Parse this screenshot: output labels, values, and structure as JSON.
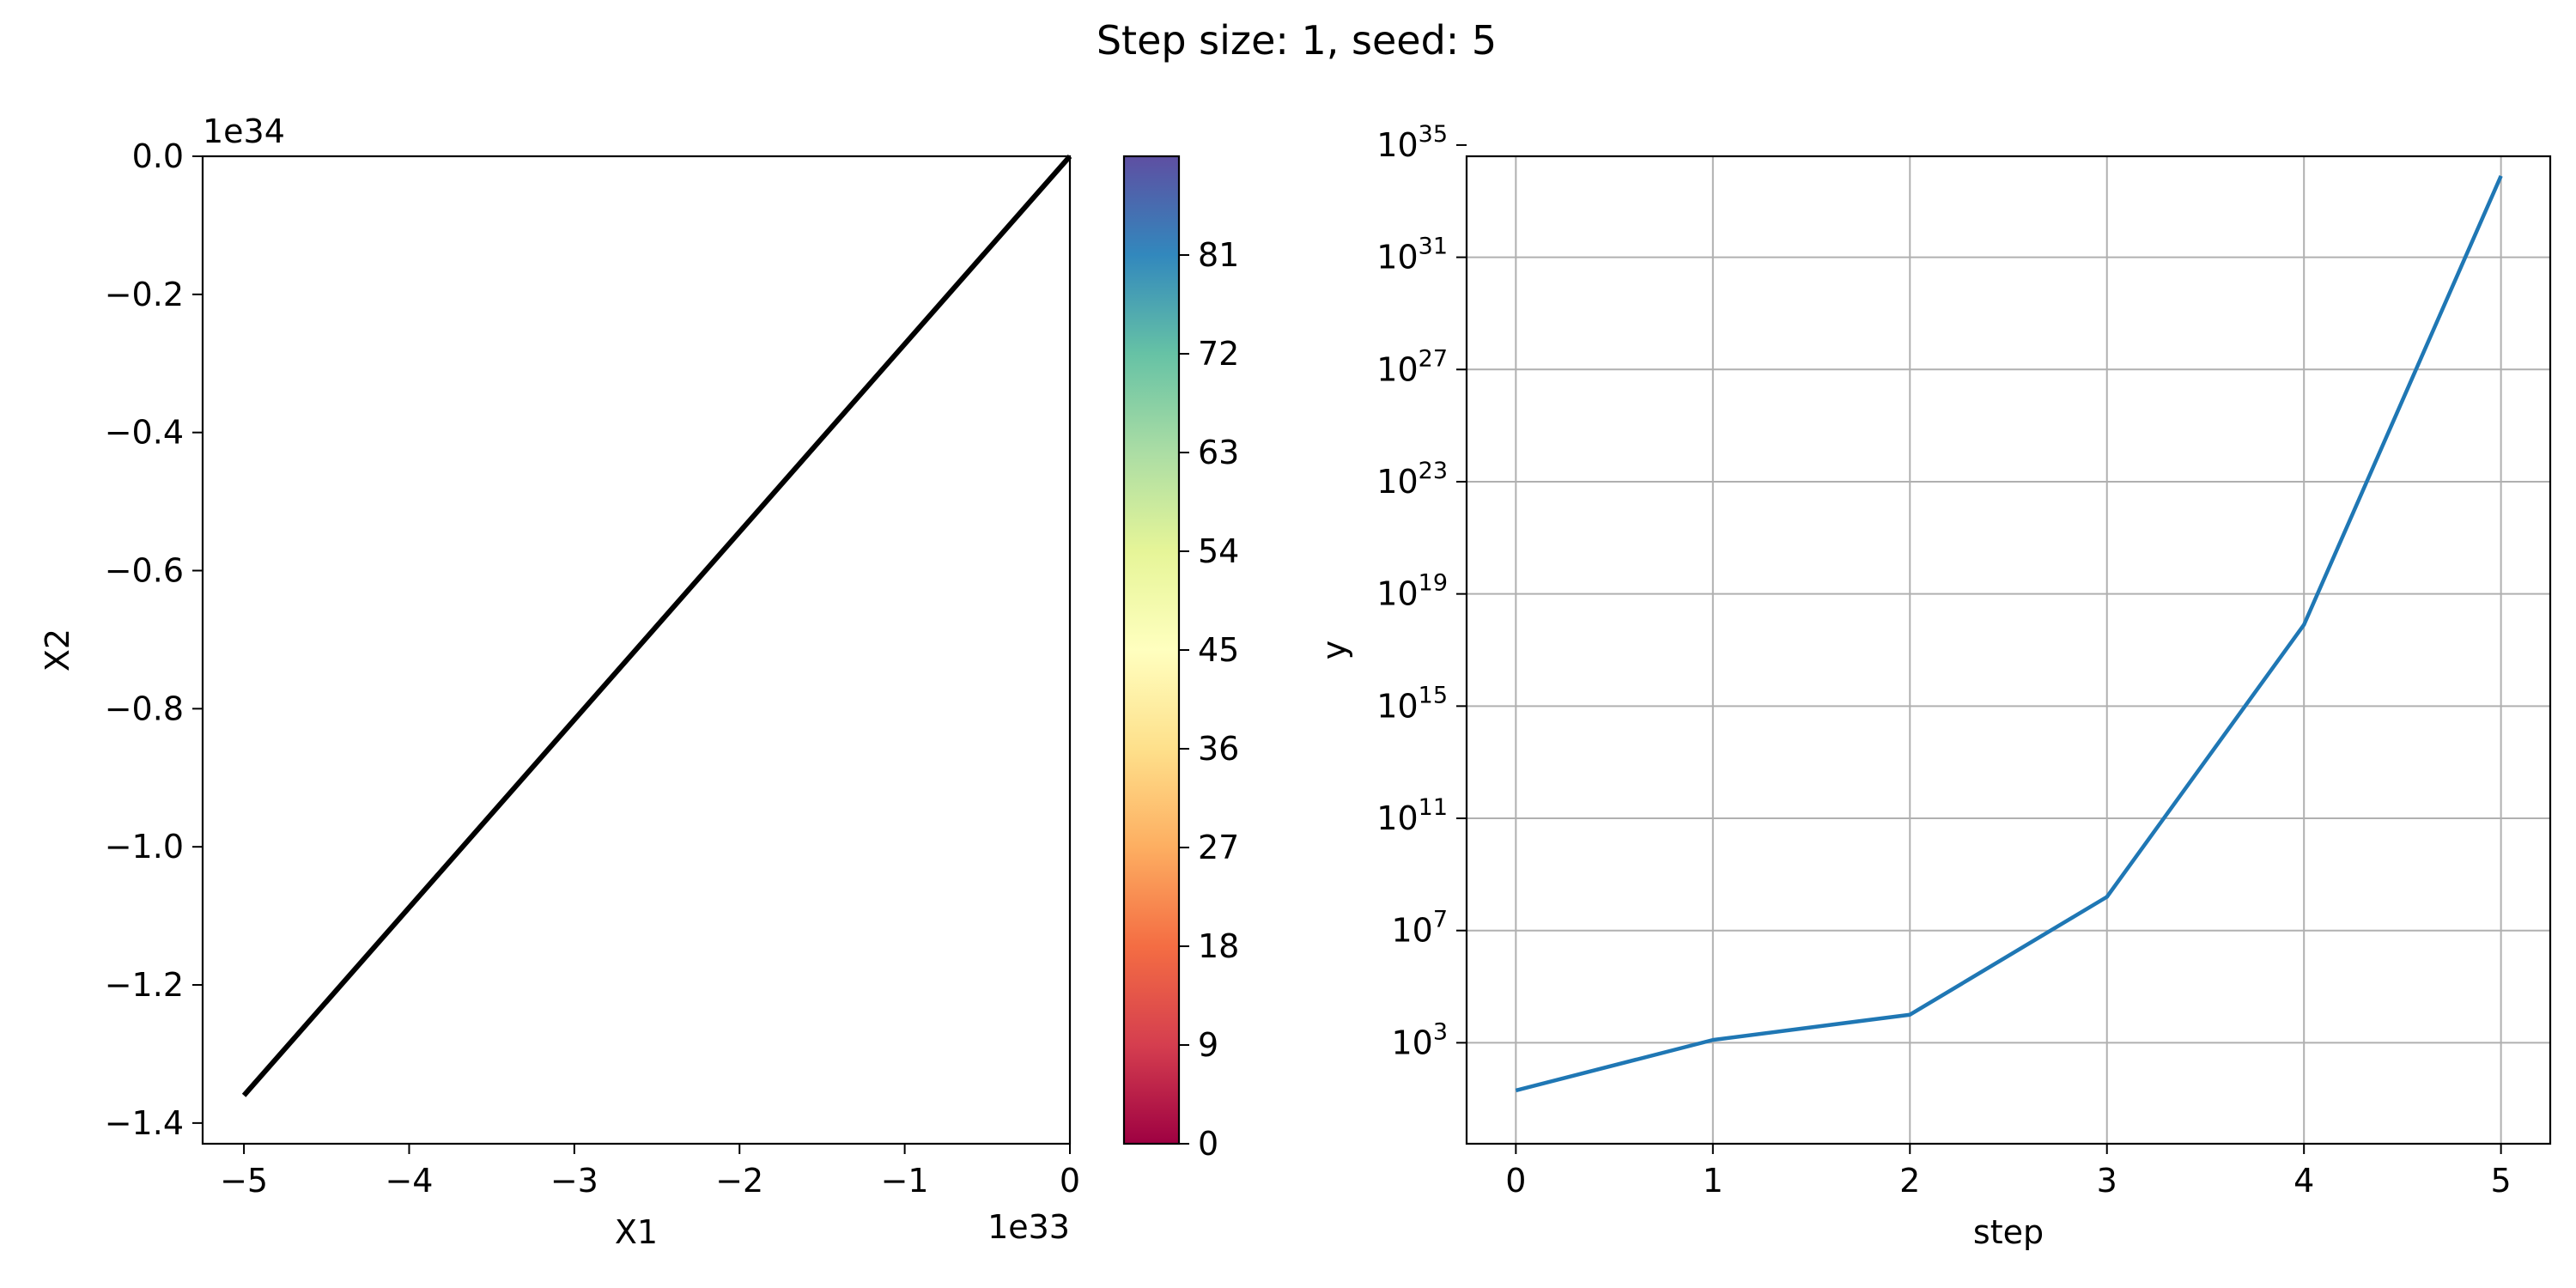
{
  "figure": {
    "title": "Step size: 1, seed: 5"
  },
  "chart_data": [
    {
      "type": "line",
      "panel": "trajectory",
      "xlabel": "X1",
      "ylabel": "X2",
      "x_offset_label": "1e33",
      "y_offset_label": "1e34",
      "x_scale_exp": 33,
      "y_scale_exp": 34,
      "xlim": [
        -5.25,
        0
      ],
      "ylim": [
        -1.43,
        0
      ],
      "xticks": [
        -5,
        -4,
        -3,
        -2,
        -1,
        0
      ],
      "xtick_labels": [
        "−5",
        "−4",
        "−3",
        "−2",
        "−1",
        "0"
      ],
      "yticks": [
        0,
        -0.2,
        -0.4,
        -0.6,
        -0.8,
        -1.0,
        -1.2,
        -1.4
      ],
      "ytick_labels": [
        "0.0",
        "−0.2",
        "−0.4",
        "−0.6",
        "−0.8",
        "−1.0",
        "−1.2",
        "−1.4"
      ],
      "line_color": "#000000",
      "series": [
        {
          "x": [
            -5.0,
            0.0
          ],
          "y": [
            -1.36,
            0.0
          ]
        }
      ],
      "grid": false
    },
    {
      "type": "colorbar",
      "panel": "colorbar",
      "colormap": "Spectral",
      "range": [
        0,
        90
      ],
      "ticks": [
        0,
        9,
        18,
        27,
        36,
        45,
        54,
        63,
        72,
        81
      ],
      "tick_labels": [
        "0",
        "9",
        "18",
        "27",
        "36",
        "45",
        "54",
        "63",
        "72",
        "81"
      ],
      "colors": [
        "#9e0142",
        "#d53e4f",
        "#f46d43",
        "#fdae61",
        "#fee08b",
        "#ffffbf",
        "#e6f598",
        "#abdda4",
        "#66c2a5",
        "#3288bd",
        "#5e4fa2"
      ]
    },
    {
      "type": "line",
      "panel": "log-y",
      "xlabel": "step",
      "ylabel": "y",
      "yscale": "log",
      "xlim": [
        -0.25,
        5.25
      ],
      "ylim_log10": [
        -0.6,
        34.6
      ],
      "xticks": [
        0,
        1,
        2,
        3,
        4,
        5
      ],
      "xtick_labels": [
        "0",
        "1",
        "2",
        "3",
        "4",
        "5"
      ],
      "yticks_log10": [
        3,
        7,
        11,
        15,
        19,
        23,
        27,
        31,
        35
      ],
      "ytick_base": "10",
      "ytick_exponents": [
        "3",
        "7",
        "11",
        "15",
        "19",
        "23",
        "27",
        "31",
        "35"
      ],
      "grid": true,
      "line_color": "#1f77b4",
      "series": [
        {
          "x": [
            0,
            1,
            2,
            3,
            4,
            5
          ],
          "log10_y": [
            1.3,
            3.1,
            4.0,
            8.2,
            17.9,
            33.9
          ]
        }
      ]
    }
  ]
}
